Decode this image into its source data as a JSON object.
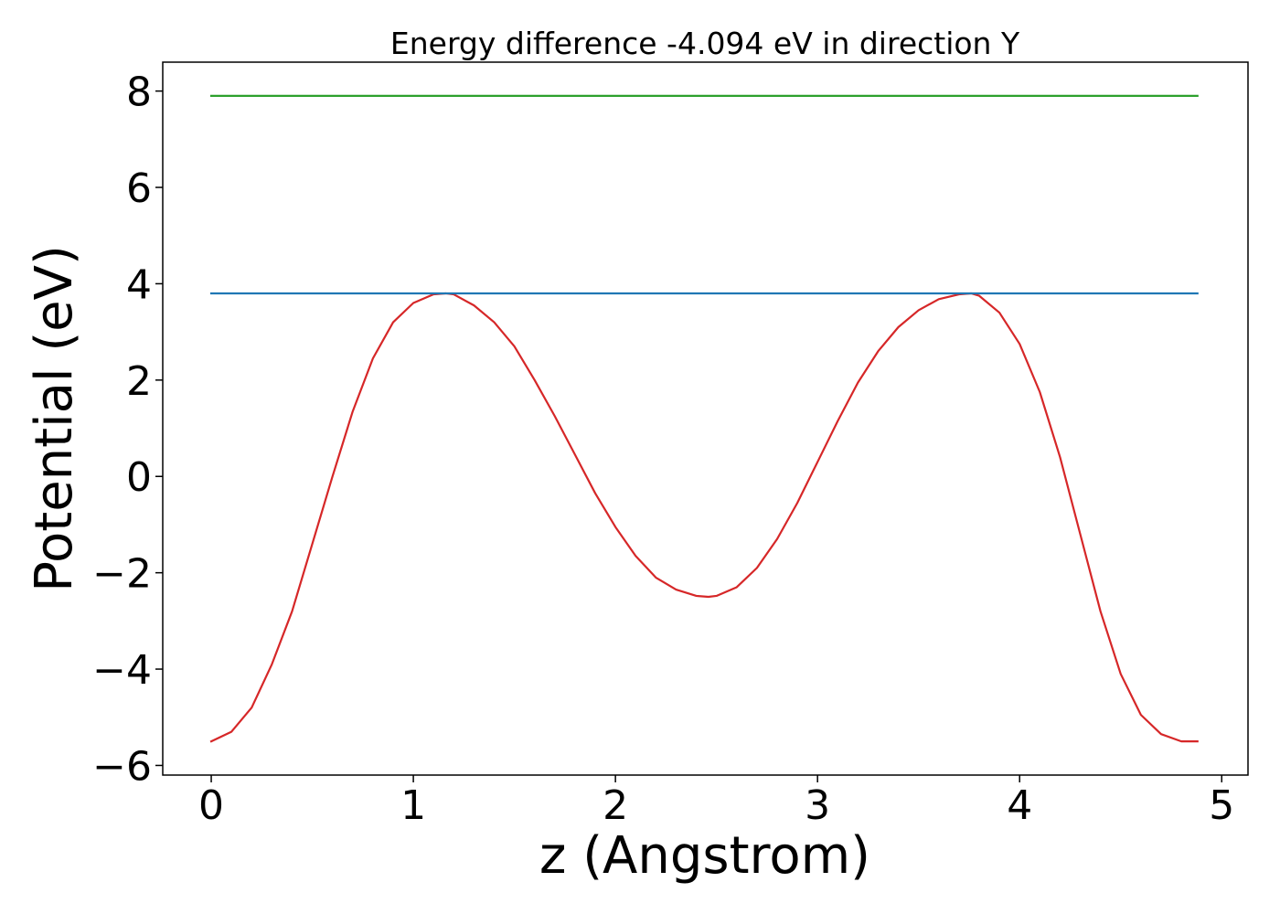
{
  "chart_data": {
    "type": "line",
    "title": "Energy difference -4.094 eV in direction Y",
    "xlabel": "z (Angstrom)",
    "ylabel": "Potential (eV)",
    "xlim": [
      -0.24,
      5.13
    ],
    "ylim": [
      -6.2,
      8.6
    ],
    "xticks": [
      0,
      1,
      2,
      3,
      4,
      5
    ],
    "yticks": [
      -6,
      -4,
      -2,
      0,
      2,
      4,
      6,
      8
    ],
    "xtick_labels": [
      "0",
      "1",
      "2",
      "3",
      "4",
      "5"
    ],
    "ytick_labels": [
      "−6",
      "−4",
      "−2",
      "0",
      "2",
      "4",
      "6",
      "8"
    ],
    "grid": false,
    "series": [
      {
        "color": "#d62728",
        "x": [
          0,
          0.1,
          0.2,
          0.3,
          0.4,
          0.5,
          0.6,
          0.7,
          0.8,
          0.9,
          1.0,
          1.1,
          1.16,
          1.2,
          1.3,
          1.4,
          1.5,
          1.6,
          1.7,
          1.8,
          1.9,
          2.0,
          2.1,
          2.2,
          2.3,
          2.4,
          2.46,
          2.5,
          2.6,
          2.7,
          2.8,
          2.9,
          3.0,
          3.1,
          3.2,
          3.3,
          3.4,
          3.5,
          3.6,
          3.7,
          3.76,
          3.8,
          3.9,
          4.0,
          4.1,
          4.2,
          4.3,
          4.4,
          4.5,
          4.6,
          4.7,
          4.8,
          4.88
        ],
        "y": [
          -5.5,
          -5.3,
          -4.8,
          -3.9,
          -2.8,
          -1.4,
          0.0,
          1.35,
          2.45,
          3.2,
          3.6,
          3.78,
          3.8,
          3.78,
          3.55,
          3.2,
          2.7,
          2.0,
          1.25,
          0.45,
          -0.35,
          -1.05,
          -1.65,
          -2.1,
          -2.35,
          -2.48,
          -2.5,
          -2.48,
          -2.3,
          -1.9,
          -1.3,
          -0.55,
          0.3,
          1.15,
          1.95,
          2.6,
          3.1,
          3.45,
          3.68,
          3.78,
          3.8,
          3.75,
          3.4,
          2.75,
          1.75,
          0.4,
          -1.2,
          -2.8,
          -4.1,
          -4.95,
          -5.35,
          -5.5,
          -5.5
        ]
      },
      {
        "color": "#1f77b4",
        "x": [
          0,
          4.88
        ],
        "y": [
          3.8,
          3.8
        ]
      },
      {
        "color": "#2ca02c",
        "x": [
          0,
          4.88
        ],
        "y": [
          7.9,
          7.9
        ]
      }
    ]
  }
}
